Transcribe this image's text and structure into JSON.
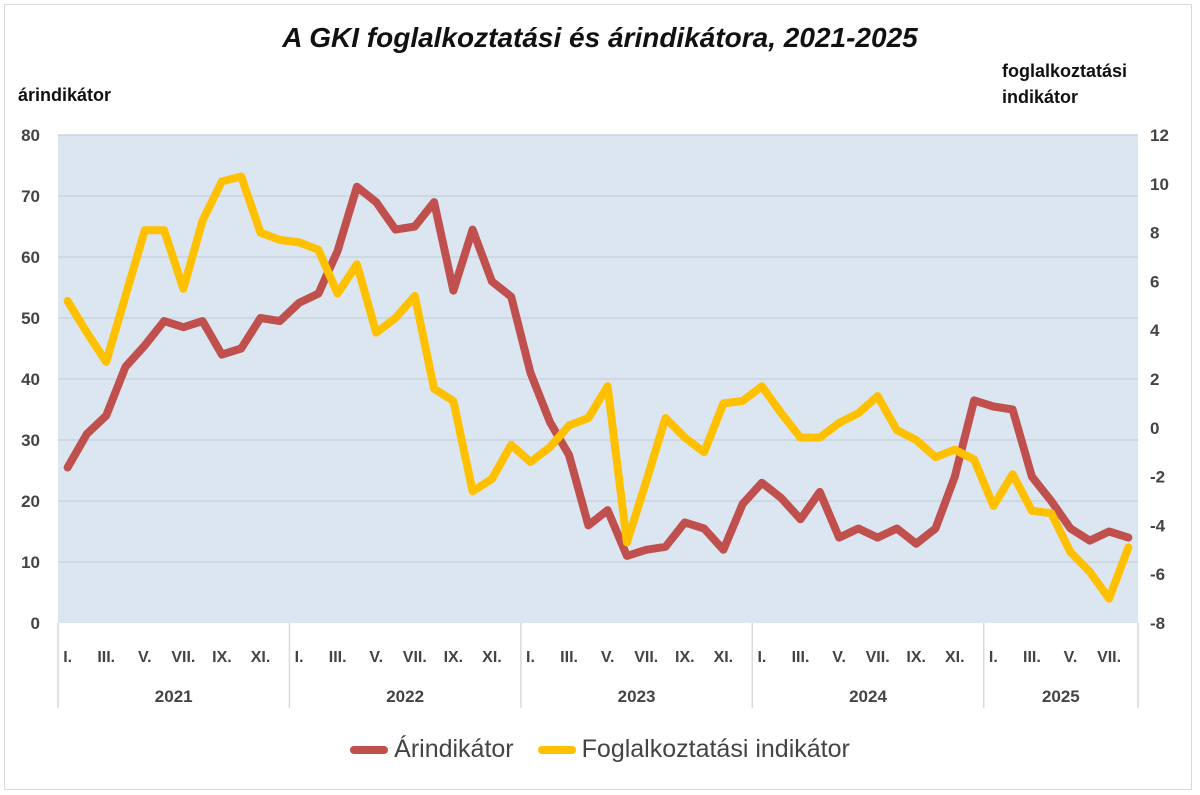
{
  "chart_data": {
    "type": "line",
    "title": "A GKI foglalkoztatási és árindikátora, 2021-2025",
    "ylabel_left": "árindikátor",
    "ylabel_right": "foglalkoztatási indikátor",
    "ylim_left": [
      0,
      80
    ],
    "ylim_right": [
      -8,
      12
    ],
    "yticks_left": [
      "0",
      "10",
      "20",
      "30",
      "40",
      "50",
      "60",
      "70",
      "80"
    ],
    "yticks_right": [
      "-8",
      "-6",
      "-4",
      "-2",
      "0",
      "2",
      "4",
      "6",
      "8",
      "10",
      "12"
    ],
    "grid": true,
    "legend_position": "bottom",
    "years": [
      "2021",
      "2022",
      "2023",
      "2024",
      "2025"
    ],
    "months_per_year": [
      12,
      12,
      12,
      12,
      8
    ],
    "month_tick_labels": [
      "I.",
      "III.",
      "V.",
      "VII.",
      "IX.",
      "XI."
    ],
    "series": [
      {
        "name": "Árindikátor",
        "axis": "left",
        "color": "#C0504D",
        "values": [
          25.5,
          31,
          34,
          42,
          45.5,
          49.5,
          48.5,
          49.5,
          44,
          45,
          50,
          49.5,
          52.5,
          54,
          61,
          71.5,
          69,
          64.5,
          65,
          69,
          54.5,
          64.5,
          56,
          53.5,
          41,
          33,
          27.5,
          16,
          18.5,
          11,
          12,
          12.5,
          16.5,
          15.5,
          12,
          19.5,
          23,
          20.5,
          17,
          21.5,
          14,
          15.5,
          14,
          15.5,
          13,
          15.5,
          24,
          36.5,
          35.5,
          35,
          24,
          20,
          15.5,
          13.5,
          15,
          14
        ]
      },
      {
        "name": "Foglalkoztatási indikátor",
        "axis": "right",
        "color": "#FFC000",
        "values": [
          5.2,
          3.9,
          2.7,
          5.4,
          8.1,
          8.1,
          5.7,
          8.5,
          10.1,
          10.3,
          8.0,
          7.7,
          7.6,
          7.3,
          5.5,
          6.7,
          3.9,
          4.5,
          5.4,
          1.6,
          1.1,
          -2.6,
          -2.1,
          -0.7,
          -1.4,
          -0.8,
          0.1,
          0.4,
          1.7,
          -4.7,
          -2.2,
          0.4,
          -0.4,
          -1.0,
          1.0,
          1.1,
          1.7,
          0.6,
          -0.4,
          -0.4,
          0.2,
          0.6,
          1.3,
          -0.1,
          -0.5,
          -1.2,
          -0.9,
          -1.3,
          -3.2,
          -1.9,
          -3.4,
          -3.5,
          -5.1,
          -5.9,
          -7.0,
          -4.9
        ]
      }
    ]
  }
}
